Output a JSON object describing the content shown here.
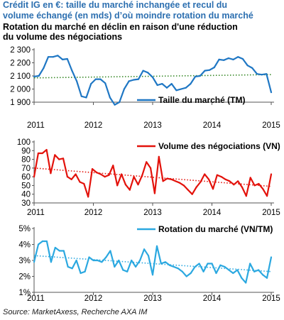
{
  "header": {
    "line1": "Crédit IG en €: taille du marché inchangée et recul du",
    "line2": "volume échangé (en mds) d’où moindre rotation du marché",
    "line3": "Rotation du marché en déclin en raison d'une réduction",
    "line4": "du volume des négociations"
  },
  "source": "Source: MarketAxess, Recherche AXA IM",
  "colors": {
    "blue": "#1f77c4",
    "red": "#e3120b",
    "cyan": "#2ba8e0",
    "trend": "#3a8a2a"
  },
  "chart_data": [
    {
      "type": "line",
      "legend": "Taille du marché (TM)",
      "legend_position": "center-right",
      "x_tick_labels": [
        "2011",
        "2012",
        "2013",
        "2014",
        "2015"
      ],
      "xlim": [
        2011,
        2015
      ],
      "ylim": [
        1900,
        2300
      ],
      "y_ticks": [
        1900,
        2000,
        2100,
        2200,
        2300
      ],
      "y_tick_labels": [
        "1 900",
        "2 000",
        "2 100",
        "2 200",
        "2 300"
      ],
      "grid": false,
      "trend_line": [
        2085,
        2110
      ],
      "values": [
        2095,
        2100,
        2160,
        2245,
        2245,
        2255,
        2225,
        2230,
        2140,
        2060,
        1945,
        1935,
        2040,
        2075,
        2075,
        2045,
        1935,
        1880,
        1900,
        2000,
        2060,
        2070,
        2075,
        2140,
        2125,
        2090,
        2030,
        2040,
        2010,
        2040,
        1990,
        2000,
        2010,
        2040,
        2095,
        2100,
        2140,
        2145,
        2165,
        2225,
        2220,
        2235,
        2225,
        2245,
        2230,
        2180,
        2160,
        2115,
        2110,
        2115,
        1975
      ]
    },
    {
      "type": "line",
      "legend": "Volume des négociations (VN)",
      "legend_position": "top-right",
      "x_tick_labels": [
        "2011",
        "2012",
        "2013",
        "2014",
        "2015"
      ],
      "xlim": [
        2011,
        2015
      ],
      "ylim": [
        30,
        100
      ],
      "y_ticks": [
        30,
        40,
        50,
        60,
        70,
        80,
        90,
        100
      ],
      "y_tick_labels": [
        "30",
        "40",
        "50",
        "60",
        "70",
        "80",
        "90",
        "100"
      ],
      "grid": false,
      "trend_line": [
        70,
        49
      ],
      "values": [
        60,
        87,
        87,
        91,
        64,
        85,
        80,
        81,
        60,
        57,
        63,
        54,
        52,
        37,
        69,
        65,
        63,
        60,
        62,
        73,
        50,
        63,
        51,
        45,
        60,
        51,
        62,
        77,
        70,
        41,
        83,
        55,
        58,
        57,
        55,
        53,
        50,
        45,
        40,
        48,
        54,
        63,
        57,
        46,
        62,
        60,
        57,
        55,
        51,
        55,
        48,
        38,
        59,
        50,
        52,
        46,
        38,
        63
      ]
    },
    {
      "type": "line",
      "legend": "Rotation du marché (VN/TM)",
      "legend_position": "top-right",
      "x_tick_labels": [
        "2011",
        "2012",
        "2013",
        "2014",
        "2015"
      ],
      "xlim": [
        2011,
        2015
      ],
      "ylim": [
        1,
        5
      ],
      "y_ticks": [
        1,
        2,
        3,
        4,
        5
      ],
      "y_tick_labels": [
        "1%",
        "2%",
        "3%",
        "4%",
        "5%"
      ],
      "grid": false,
      "trend_line": [
        3.3,
        2.3
      ],
      "values": [
        2.9,
        4.0,
        4.2,
        4.2,
        2.9,
        3.8,
        3.6,
        3.6,
        2.6,
        2.5,
        3.0,
        2.2,
        2.3,
        3.2,
        3.0,
        3.0,
        2.9,
        3.2,
        3.6,
        2.6,
        3.0,
        2.4,
        2.3,
        3.0,
        2.6,
        3.0,
        3.7,
        3.3,
        2.1,
        3.9,
        2.8,
        2.9,
        2.7,
        2.6,
        2.5,
        2.3,
        2.0,
        2.2,
        2.6,
        2.8,
        2.3,
        2.8,
        2.8,
        2.2,
        2.7,
        2.6,
        2.4,
        2.2,
        2.4,
        1.9,
        1.6,
        2.8,
        2.3,
        2.4,
        2.1,
        1.9,
        3.2
      ]
    }
  ]
}
